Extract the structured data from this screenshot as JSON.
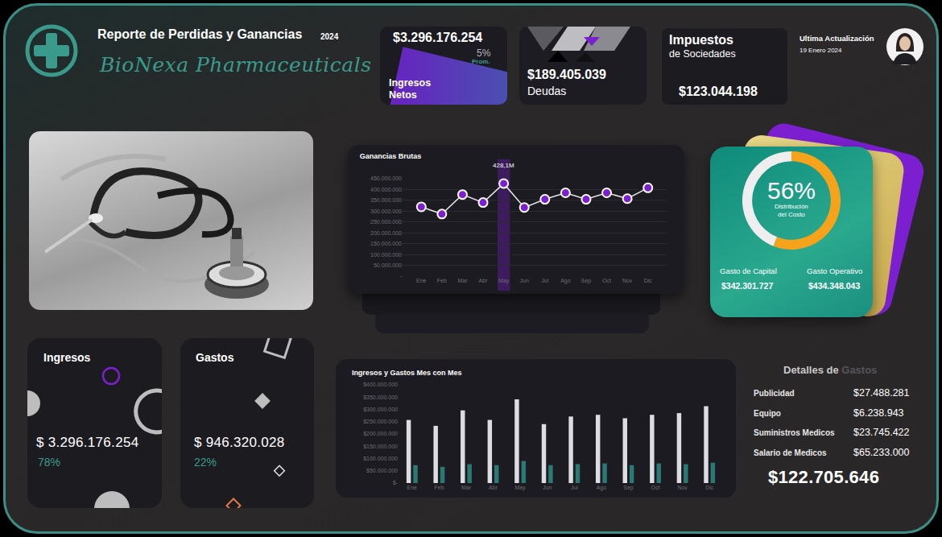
{
  "header": {
    "title": "Reporte de Perdidas y Ganancias",
    "year": "2024",
    "company": "BioNexa Pharmaceuticals"
  },
  "kpis": {
    "ingresos_netos": {
      "value": "$3.296.176.254",
      "change": "5%",
      "change_note": "Prom.",
      "label": [
        "Ingresos",
        "Netos"
      ]
    },
    "deudas": {
      "value": "$189.405.039",
      "label": "Deudas"
    },
    "impuestos": {
      "value": "$123.044.198",
      "label": [
        "Impuestos",
        "de Sociedades"
      ]
    }
  },
  "update": {
    "label": "Ultima Actualización",
    "date": "19 Enero 2024"
  },
  "cards": [
    {
      "title": "Ingresos",
      "value": "$ 3.296.176.254",
      "share": "78%"
    },
    {
      "title": "Gastos",
      "value": "$ 946.320.028",
      "share": "22%"
    }
  ],
  "cost_distribution": {
    "items": [
      {
        "label": "Gasto de Capital",
        "value": "$342.301.727"
      },
      {
        "label": "Gasto Operativo",
        "value": "$434.348.043"
      }
    ]
  },
  "expense_details": {
    "title": [
      "Detalles de",
      "Gastos"
    ],
    "rows": [
      [
        "Publicidad",
        "$27.488.281"
      ],
      [
        "Equipo",
        "$6.238.943"
      ],
      [
        "Suministros Medicos",
        "$23.745.422"
      ],
      [
        "Salario de Medicos",
        "$65.233.000"
      ]
    ],
    "total": "$122.705.646"
  },
  "chart_data": [
    {
      "type": "line",
      "title": "Ganancias Brutas",
      "categories": [
        "Ene",
        "Feb",
        "Mar",
        "Abr",
        "May",
        "Jun",
        "Jul",
        "Ago",
        "Sep",
        "Oct",
        "Nov",
        "Dic"
      ],
      "values": [
        320000000,
        287000000,
        377000000,
        340000000,
        428100000,
        317000000,
        355000000,
        385000000,
        355000000,
        385000000,
        358000000,
        408000000
      ],
      "color": "#7b1fd1",
      "marker": "circle",
      "grid": true,
      "ylim": [
        0,
        450000000
      ],
      "yticks": [
        {
          "value": 0,
          "label": "-"
        },
        {
          "value": 50000000,
          "label": "50.000.000"
        },
        {
          "value": 100000000,
          "label": "100.000.000"
        },
        {
          "value": 150000000,
          "label": "150.000.000"
        },
        {
          "value": 200000000,
          "label": "200.000.000"
        },
        {
          "value": 250000000,
          "label": "250.000.000"
        },
        {
          "value": 300000000,
          "label": "300.000.000"
        },
        {
          "value": 350000000,
          "label": "350.000.000"
        },
        {
          "value": 400000000,
          "label": "400.000.000"
        },
        {
          "value": 450000000,
          "label": "450.000.000"
        }
      ],
      "annotations": [
        {
          "x": "May",
          "text": "428,1M"
        }
      ]
    },
    {
      "type": "pie",
      "title": "56%",
      "subtitle": [
        "Distribución",
        "del Costo"
      ],
      "values": [
        56,
        44
      ],
      "colors": [
        "#f5a31a",
        "#eeeeee"
      ]
    },
    {
      "type": "bar",
      "title": "Ingresos y Gastos Mes con Mes",
      "categories": [
        "Ene",
        "Feb",
        "Mar",
        "Abr",
        "May",
        "Jun",
        "Jul",
        "Ago",
        "Sep",
        "Oct",
        "Nov",
        "Dic"
      ],
      "series": [
        {
          "color": "#dcdce2",
          "values": [
            257000000,
            233000000,
            296000000,
            257000000,
            341000000,
            240000000,
            271000000,
            278000000,
            264000000,
            278000000,
            285000000,
            313000000
          ]
        },
        {
          "color": "#2a7a73",
          "values": [
            73000000,
            66000000,
            77000000,
            73000000,
            90000000,
            73000000,
            77000000,
            80000000,
            73000000,
            80000000,
            77000000,
            83000000
          ]
        }
      ],
      "grid": false,
      "ylim": [
        0,
        400000000
      ],
      "yticks": [
        {
          "value": 0,
          "label": "$-"
        },
        {
          "value": 50000000,
          "label": "$50.000.000"
        },
        {
          "value": 100000000,
          "label": "$100.000.000"
        },
        {
          "value": 150000000,
          "label": "$150.000.000"
        },
        {
          "value": 200000000,
          "label": "$200.000.000"
        },
        {
          "value": 250000000,
          "label": "$250.000.000"
        },
        {
          "value": 300000000,
          "label": "$300.000.000"
        },
        {
          "value": 350000000,
          "label": "$350.000.000"
        },
        {
          "value": 400000000,
          "label": "$400.000.000"
        }
      ]
    }
  ]
}
